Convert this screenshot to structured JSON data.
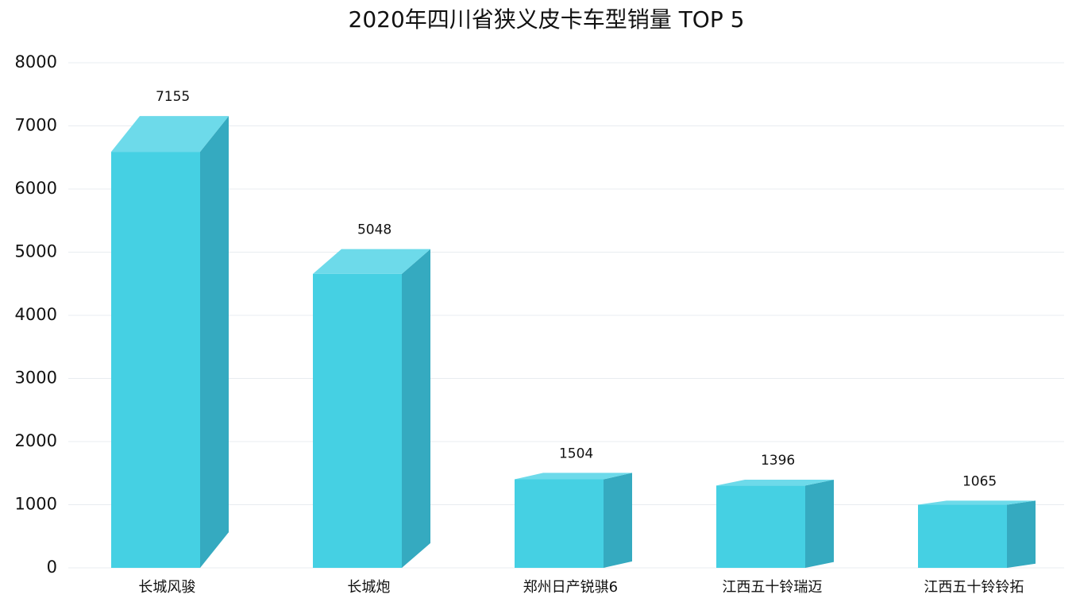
{
  "chart_data": {
    "type": "bar3d",
    "title": "2020年四川省狭义皮卡车型销量 TOP 5",
    "categories": [
      "长城风骏",
      "长城炮",
      "郑州日产锐骐6",
      "江西五十铃瑞迈",
      "江西五十铃铃拓"
    ],
    "values": [
      7155,
      5048,
      1504,
      1396,
      1065
    ],
    "color": "#45d0e3",
    "ylim": [
      0,
      8000
    ],
    "yticks": [
      0,
      1000,
      2000,
      3000,
      4000,
      5000,
      6000,
      7000,
      8000
    ],
    "grid": true
  }
}
